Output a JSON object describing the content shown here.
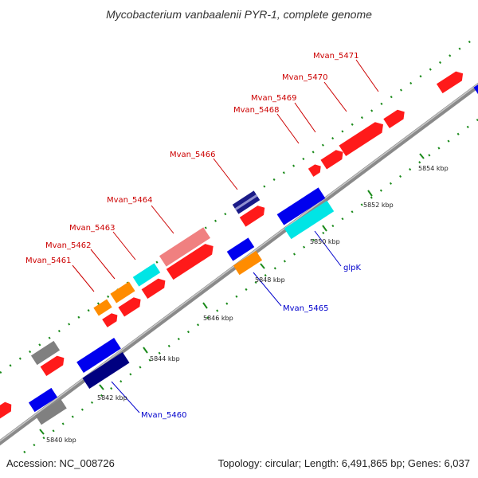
{
  "title": "Mycobacterium vanbaalenii PYR-1, complete genome",
  "footer": {
    "accession": "Accession: NC_008726",
    "topology": "Topology: circular; Length: 6,491,865 bp; Genes: 6,037"
  },
  "colors": {
    "red": "#ff1a1a",
    "orange": "#ff8c00",
    "cyan": "#00e5e5",
    "blue": "#0000ee",
    "navy": "#000080",
    "gray": "#808080",
    "pink": "#f08080",
    "tick": "#1a8a1a",
    "label_red": "#cc0000",
    "label_blue": "#0000cc"
  },
  "kbp_labels": [
    "5840 kbp",
    "5842 kbp",
    "5844 kbp",
    "5846 kbp",
    "5848 kbp",
    "5850 kbp",
    "5852 kbp",
    "5854 kbp"
  ],
  "gene_labels_top": [
    "Mvan_5461",
    "Mvan_5462",
    "Mvan_5463",
    "Mvan_5464",
    "Mvan_5466",
    "Mvan_5468",
    "Mvan_5469",
    "Mvan_5470",
    "Mvan_5471"
  ],
  "gene_labels_bottom": [
    "Mvan_5460",
    "Mvan_5465",
    "glpK"
  ]
}
